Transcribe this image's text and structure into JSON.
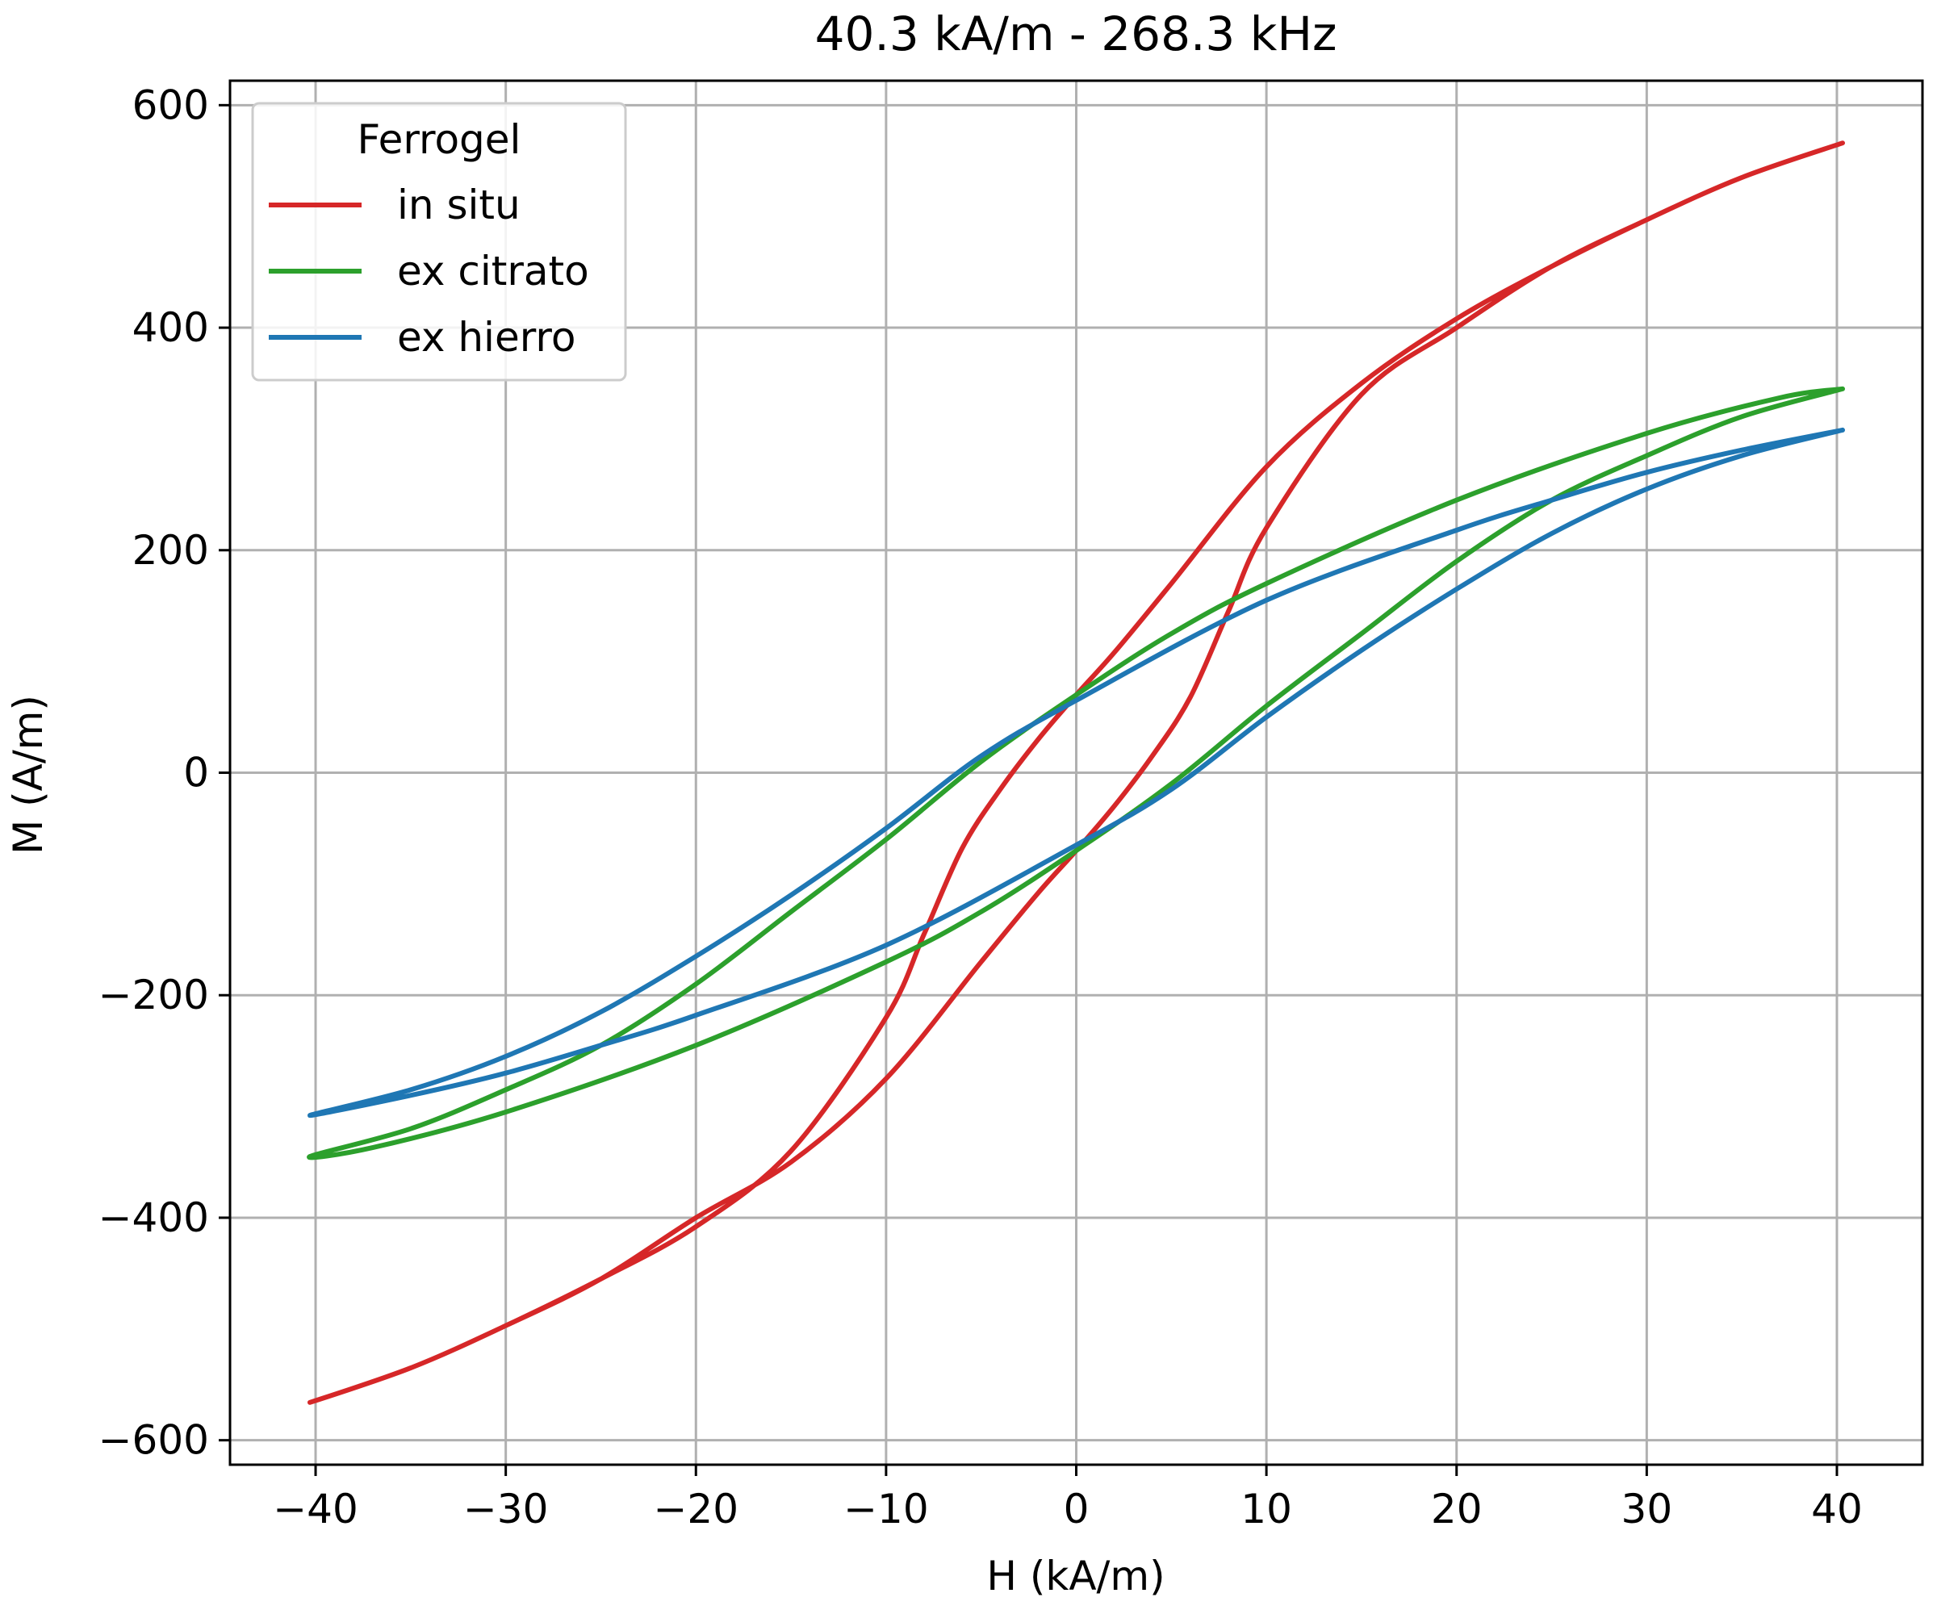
{
  "chart_data": {
    "type": "line",
    "title": "40.3 kA/m - 268.3 kHz",
    "xlabel": "H (kA/m)",
    "ylabel": "M (A/m)",
    "xlim": [
      -44.5,
      44.5
    ],
    "ylim": [
      -622,
      622
    ],
    "xticks": [
      -40,
      -30,
      -20,
      -10,
      0,
      10,
      20,
      30,
      40
    ],
    "xtick_labels": [
      "−40",
      "−30",
      "−20",
      "−10",
      "0",
      "10",
      "20",
      "30",
      "40"
    ],
    "yticks": [
      -600,
      -400,
      -200,
      0,
      200,
      400,
      600
    ],
    "ytick_labels": [
      "−600",
      "−400",
      "−200",
      "0",
      "200",
      "400",
      "600"
    ],
    "grid": true,
    "legend": {
      "title": "Ferrogel",
      "placement": "upper-left"
    },
    "series": [
      {
        "name": "in situ",
        "color": "#d62728",
        "x": [
          40.3,
          35,
          30,
          25,
          20,
          15,
          10,
          5,
          2,
          0,
          -2,
          -4,
          -6,
          -8,
          -10,
          -15,
          -20,
          -25,
          -30,
          -35,
          -40.3,
          -35,
          -30,
          -25,
          -20,
          -15,
          -10,
          -5,
          -2,
          0,
          2,
          4,
          6,
          8,
          10,
          15,
          20,
          25,
          30,
          35,
          40.3
        ],
        "y": [
          566,
          535,
          497,
          455,
          408,
          350,
          275,
          170,
          108,
          70,
          30,
          -15,
          -68,
          -145,
          -220,
          -340,
          -408,
          -455,
          -497,
          -535,
          -566,
          -535,
          -497,
          -455,
          -400,
          -350,
          -275,
          -170,
          -108,
          -70,
          -30,
          15,
          68,
          145,
          220,
          340,
          400,
          455,
          497,
          535,
          566
        ]
      },
      {
        "name": "ex citrato",
        "color": "#2ca02c",
        "x": [
          40.3,
          37,
          30,
          20,
          10,
          5,
          0,
          -5,
          -10,
          -15,
          -20,
          -25,
          -30,
          -35,
          -40.3,
          -37,
          -30,
          -20,
          -10,
          -5,
          0,
          5,
          10,
          15,
          20,
          25,
          30,
          35,
          40.3
        ],
        "y": [
          345,
          337,
          305,
          245,
          170,
          125,
          70,
          10,
          -60,
          -125,
          -190,
          -245,
          -285,
          -320,
          -345,
          -337,
          -305,
          -245,
          -170,
          -125,
          -70,
          -10,
          60,
          125,
          190,
          245,
          285,
          320,
          345
        ]
      },
      {
        "name": "ex hierro",
        "color": "#1f77b4",
        "x": [
          40.3,
          35,
          30,
          25,
          20,
          10,
          0,
          -5,
          -10,
          -15,
          -20,
          -25,
          -30,
          -35,
          -40.3,
          -35,
          -30,
          -25,
          -20,
          -10,
          0,
          5,
          10,
          15,
          20,
          25,
          30,
          35,
          40.3
        ],
        "y": [
          308,
          290,
          270,
          245,
          218,
          155,
          65,
          15,
          -50,
          -110,
          -165,
          -215,
          -255,
          -285,
          -308,
          -290,
          -270,
          -245,
          -218,
          -155,
          -65,
          -15,
          50,
          110,
          165,
          215,
          255,
          285,
          308
        ]
      }
    ]
  }
}
